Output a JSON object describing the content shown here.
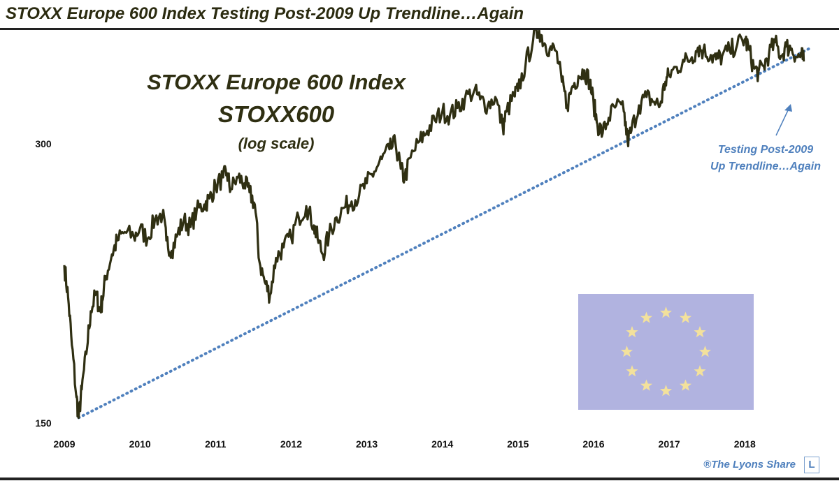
{
  "headline": "STOXX Europe 600 Index Testing Post-2009 Up Trendline…Again",
  "credit": "®The Lyons Share",
  "credit_logo": "L",
  "chart_data": {
    "type": "line",
    "title": "STOXX Europe 600 Index",
    "subtitle": "STOXX600",
    "scale_note": "(log scale)",
    "y_scale": "log",
    "ylim": [
      150,
      400
    ],
    "y_ticks": [
      150,
      300
    ],
    "xlim": [
      2009.0,
      2018.95
    ],
    "x_ticks": [
      "2009",
      "2010",
      "2011",
      "2012",
      "2013",
      "2014",
      "2015",
      "2016",
      "2017",
      "2018"
    ],
    "grid": false,
    "line_color": "#2f2f12",
    "trendline_color": "#4f80bd",
    "annotation": {
      "lines": [
        "Testing Post-2009",
        "Up Trendline…Again"
      ],
      "color": "#4f80bd"
    },
    "trendline": {
      "start": {
        "x": 2009.19,
        "y": 152
      },
      "end": {
        "x": 2018.88,
        "y": 381
      }
    },
    "series": [
      {
        "values": [
          [
            2009.0,
            222
          ],
          [
            2009.05,
            205
          ],
          [
            2009.1,
            182
          ],
          [
            2009.16,
            160
          ],
          [
            2009.19,
            152
          ],
          [
            2009.23,
            163
          ],
          [
            2009.29,
            178
          ],
          [
            2009.35,
            198
          ],
          [
            2009.42,
            207
          ],
          [
            2009.47,
            198
          ],
          [
            2009.5,
            203
          ],
          [
            2009.55,
            216
          ],
          [
            2009.63,
            228
          ],
          [
            2009.7,
            236
          ],
          [
            2009.8,
            241
          ],
          [
            2009.92,
            238
          ],
          [
            2010.0,
            243
          ],
          [
            2010.1,
            237
          ],
          [
            2010.2,
            249
          ],
          [
            2010.3,
            252
          ],
          [
            2010.35,
            236
          ],
          [
            2010.42,
            230
          ],
          [
            2010.5,
            240
          ],
          [
            2010.58,
            248
          ],
          [
            2010.67,
            244
          ],
          [
            2010.75,
            254
          ],
          [
            2010.85,
            258
          ],
          [
            2010.92,
            262
          ],
          [
            2011.0,
            270
          ],
          [
            2011.1,
            276
          ],
          [
            2011.15,
            279
          ],
          [
            2011.2,
            268
          ],
          [
            2011.3,
            276
          ],
          [
            2011.38,
            272
          ],
          [
            2011.45,
            266
          ],
          [
            2011.52,
            258
          ],
          [
            2011.58,
            224
          ],
          [
            2011.65,
            213
          ],
          [
            2011.72,
            206
          ],
          [
            2011.8,
            226
          ],
          [
            2011.9,
            232
          ],
          [
            2012.0,
            238
          ],
          [
            2012.1,
            250
          ],
          [
            2012.2,
            257
          ],
          [
            2012.3,
            245
          ],
          [
            2012.35,
            237
          ],
          [
            2012.42,
            228
          ],
          [
            2012.5,
            239
          ],
          [
            2012.6,
            250
          ],
          [
            2012.7,
            256
          ],
          [
            2012.8,
            260
          ],
          [
            2012.9,
            264
          ],
          [
            2013.0,
            272
          ],
          [
            2013.1,
            280
          ],
          [
            2013.2,
            289
          ],
          [
            2013.3,
            296
          ],
          [
            2013.38,
            300
          ],
          [
            2013.45,
            282
          ],
          [
            2013.5,
            275
          ],
          [
            2013.58,
            290
          ],
          [
            2013.7,
            302
          ],
          [
            2013.8,
            310
          ],
          [
            2013.9,
            318
          ],
          [
            2014.0,
            325
          ],
          [
            2014.1,
            322
          ],
          [
            2014.2,
            328
          ],
          [
            2014.3,
            336
          ],
          [
            2014.42,
            342
          ],
          [
            2014.5,
            335
          ],
          [
            2014.6,
            330
          ],
          [
            2014.7,
            337
          ],
          [
            2014.8,
            312
          ],
          [
            2014.85,
            325
          ],
          [
            2014.95,
            338
          ],
          [
            2015.0,
            342
          ],
          [
            2015.1,
            365
          ],
          [
            2015.2,
            388
          ],
          [
            2015.28,
            398
          ],
          [
            2015.35,
            385
          ],
          [
            2015.42,
            380
          ],
          [
            2015.5,
            378
          ],
          [
            2015.58,
            350
          ],
          [
            2015.65,
            330
          ],
          [
            2015.72,
            346
          ],
          [
            2015.8,
            355
          ],
          [
            2015.88,
            360
          ],
          [
            2015.95,
            350
          ],
          [
            2016.0,
            332
          ],
          [
            2016.05,
            315
          ],
          [
            2016.12,
            308
          ],
          [
            2016.2,
            320
          ],
          [
            2016.3,
            330
          ],
          [
            2016.4,
            325
          ],
          [
            2016.45,
            302
          ],
          [
            2016.5,
            310
          ],
          [
            2016.6,
            330
          ],
          [
            2016.7,
            337
          ],
          [
            2016.8,
            333
          ],
          [
            2016.88,
            330
          ],
          [
            2016.95,
            350
          ],
          [
            2017.0,
            356
          ],
          [
            2017.1,
            363
          ],
          [
            2017.2,
            368
          ],
          [
            2017.3,
            372
          ],
          [
            2017.38,
            381
          ],
          [
            2017.45,
            378
          ],
          [
            2017.55,
            374
          ],
          [
            2017.62,
            370
          ],
          [
            2017.7,
            373
          ],
          [
            2017.8,
            378
          ],
          [
            2017.9,
            384
          ],
          [
            2018.0,
            389
          ],
          [
            2018.05,
            380
          ],
          [
            2018.12,
            362
          ],
          [
            2018.18,
            358
          ],
          [
            2018.25,
            364
          ],
          [
            2018.32,
            375
          ],
          [
            2018.4,
            386
          ],
          [
            2018.48,
            373
          ],
          [
            2018.55,
            382
          ],
          [
            2018.62,
            380
          ],
          [
            2018.7,
            372
          ],
          [
            2018.75,
            374
          ],
          [
            2018.78,
            368
          ]
        ]
      }
    ]
  },
  "flag": {
    "background": "#b1b3e0",
    "star_color": "#f3e19c",
    "star_count": 12
  }
}
